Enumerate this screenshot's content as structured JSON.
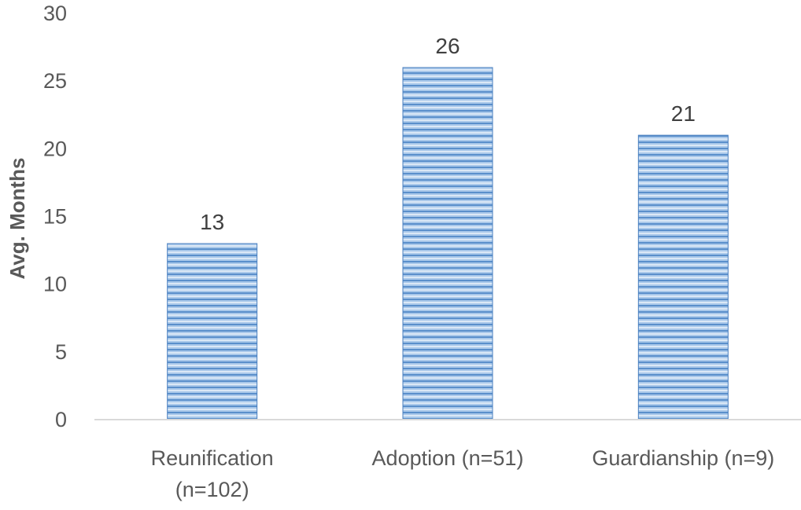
{
  "chart_data": {
    "type": "bar",
    "categories": [
      [
        "Reunification",
        "(n=102)"
      ],
      [
        "Adoption (n=51)"
      ],
      [
        "Guardianship (n=9)"
      ]
    ],
    "values": [
      13,
      26,
      21
    ],
    "data_labels": [
      "13",
      "26",
      "21"
    ],
    "title": "",
    "xlabel": "",
    "ylabel": "Avg. Months",
    "ylim": [
      0,
      30
    ],
    "yticks": [
      "0",
      "5",
      "10",
      "15",
      "20",
      "25",
      "30"
    ],
    "grid": false,
    "legend": "none",
    "colors": {
      "bar_light": "#a9c8ea",
      "bar_dark": "#4e86c4",
      "bar_edge": "#4a7fbf",
      "axis_line": "#d9d9d9",
      "text": "#595959"
    }
  }
}
